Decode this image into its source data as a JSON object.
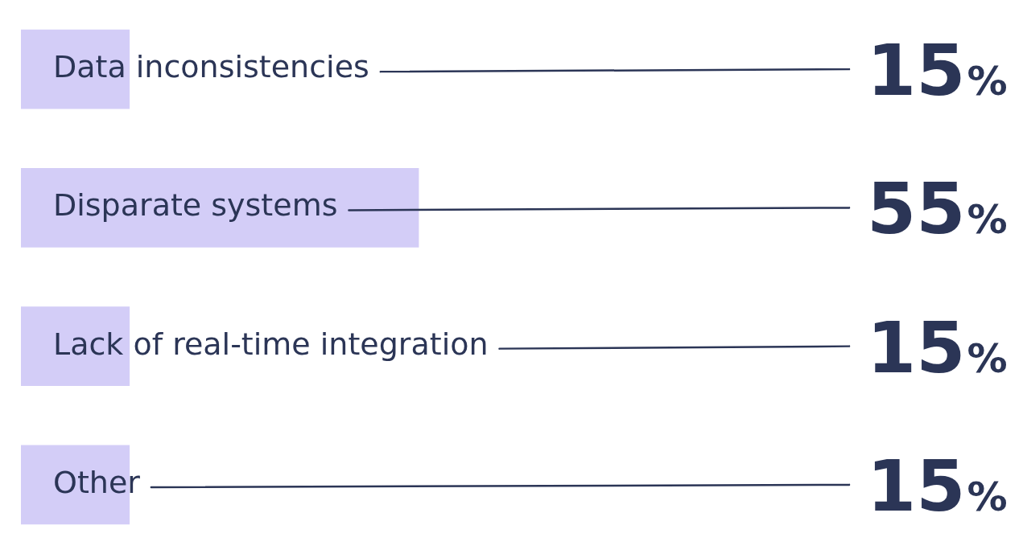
{
  "chart_data": {
    "type": "bar",
    "orientation": "horizontal",
    "categories": [
      "Data inconsistencies",
      "Disparate systems",
      "Lack of real-time integration",
      "Other"
    ],
    "values": [
      15,
      55,
      15,
      15
    ],
    "value_labels": [
      "15%",
      "55%",
      "15%",
      "15%"
    ],
    "color": "#d3cdf7",
    "tick_labels": "y"
  }
}
